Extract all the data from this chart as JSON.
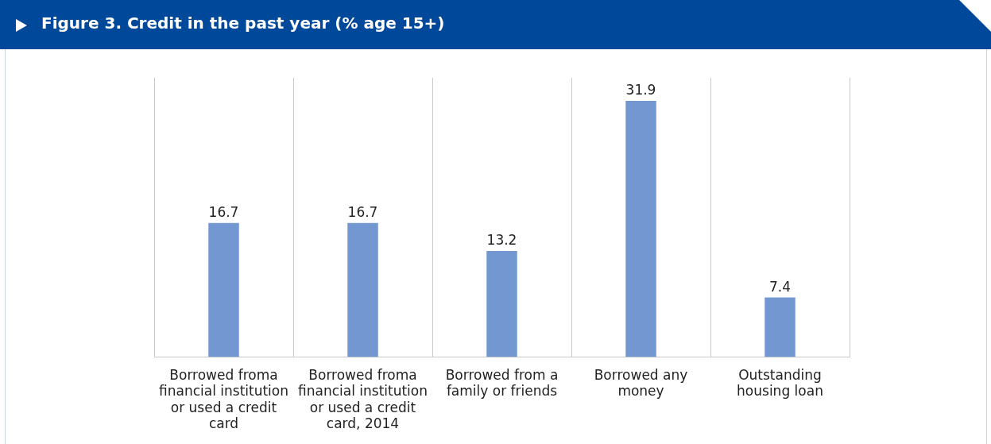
{
  "chart_data": {
    "type": "bar",
    "title": "Figure 3.  Credit in the past year (% age 15+)",
    "categories": [
      "Borrowed froma financial institution or used a credit card",
      "Borrowed froma financial institution or used a credit card, 2014",
      "Borrowed from a family or friends",
      "Borrowed any money",
      "Outstanding housing loan"
    ],
    "values": [
      16.7,
      16.7,
      13.2,
      31.9,
      7.4
    ],
    "color": "#7297d1",
    "tick_labels": "x",
    "data_labels": true,
    "grid": "x",
    "legend": false
  }
}
